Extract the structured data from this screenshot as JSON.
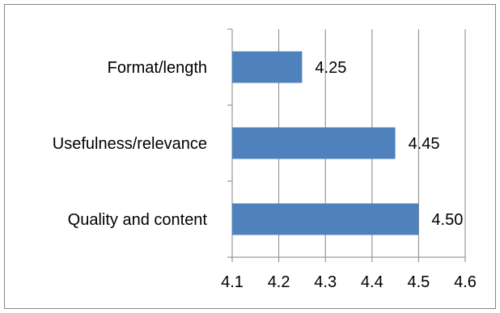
{
  "chart_data": {
    "type": "bar",
    "orientation": "horizontal",
    "categories": [
      "Format/length",
      "Usefulness/relevance",
      "Quality and content"
    ],
    "values": [
      4.25,
      4.45,
      4.5
    ],
    "value_labels": [
      "4.25",
      "4.45",
      "4.50"
    ],
    "x_ticks": [
      "4.1",
      "4.2",
      "4.3",
      "4.4",
      "4.5",
      "4.6"
    ],
    "xlim": [
      4.1,
      4.6
    ],
    "grid": "vertical",
    "legend": "none",
    "title": "",
    "xlabel": "",
    "ylabel": "",
    "colors": {
      "bar": "#4F81BD",
      "grid": "#868686",
      "axis": "#868686",
      "text": "#000000"
    }
  }
}
